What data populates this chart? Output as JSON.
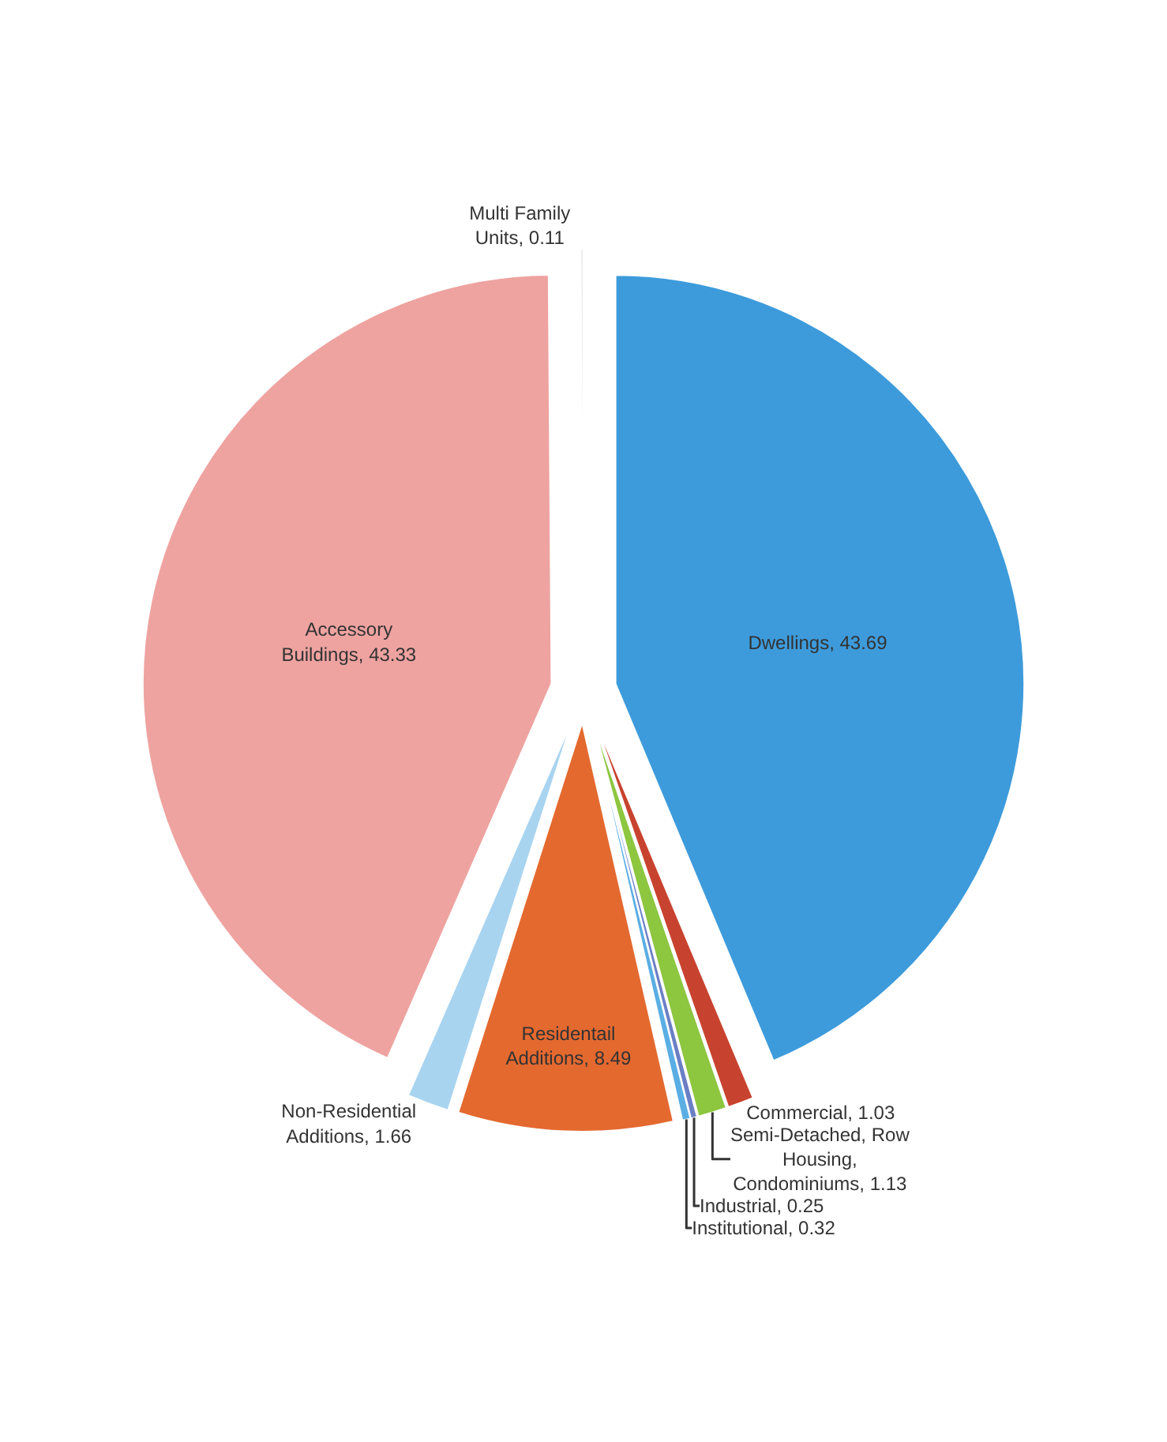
{
  "chart_data": {
    "type": "pie",
    "categories": [
      "Dwellings",
      "Commercial",
      "Semi-Detached, Row Housing, Condominiums",
      "Industrial",
      "Institutional",
      "Residentail Additions",
      "Non-Residential Additions",
      "Accessory Buildings",
      "Multi Family Units"
    ],
    "values": [
      43.69,
      1.03,
      1.13,
      0.25,
      0.32,
      8.49,
      1.66,
      43.33,
      0.11
    ],
    "value_labels": [
      "43.69",
      "1.03",
      "1.13",
      "0.25",
      "0.32",
      "8.49",
      "1.66",
      "43.33",
      "0.11"
    ],
    "colors": [
      "#3d9bdb",
      "#c8432f",
      "#8dc63f",
      "#6a7fc4",
      "#5aaee3",
      "#e4692f",
      "#a8d4f0",
      "#eea3a0",
      "#e8e8e8"
    ],
    "legend": false
  }
}
